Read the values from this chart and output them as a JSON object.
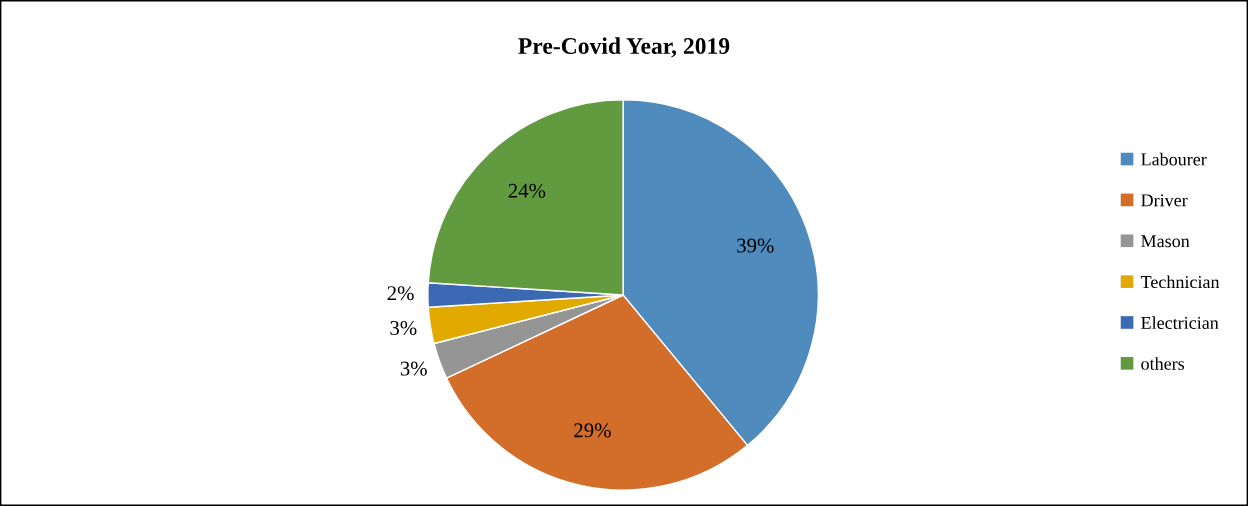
{
  "chart_data": {
    "type": "pie",
    "title": "Pre-Covid Year, 2019",
    "categories": [
      "Labourer",
      "Driver",
      "Mason",
      "Technician",
      "Electrician",
      "others"
    ],
    "values": [
      39,
      29,
      3,
      3,
      2,
      24
    ],
    "colors": [
      "#4f8bbd",
      "#d26d2a",
      "#959595",
      "#e2aa00",
      "#3c68b4",
      "#629b3f"
    ],
    "value_labels": [
      "39%",
      "29%",
      "3%",
      "3%",
      "2%",
      "24%"
    ],
    "legend": "right"
  }
}
